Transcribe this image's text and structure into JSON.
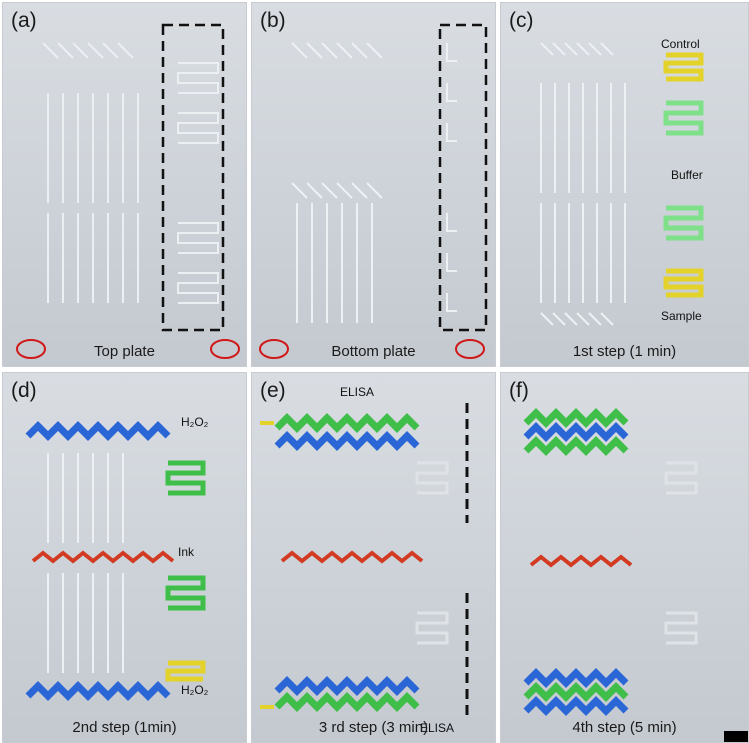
{
  "panels": [
    {
      "id": "a",
      "label": "(a)",
      "caption": "Top plate"
    },
    {
      "id": "b",
      "label": "(b)",
      "caption": "Bottom plate"
    },
    {
      "id": "c",
      "label": "(c)",
      "caption": "1st step (1 min)",
      "annotations": {
        "control": "Control",
        "buffer": "Buffer",
        "sample": "Sample"
      }
    },
    {
      "id": "d",
      "label": "(d)",
      "caption": "2nd step (1min)",
      "annotations": {
        "h2o2_top": "H₂O₂",
        "ink": "Ink",
        "h2o2_bottom": "H₂O₂"
      }
    },
    {
      "id": "e",
      "label": "(e)",
      "caption": "3 rd step (3 min)",
      "annotations": {
        "elisa_top": "ELISA",
        "elisa_bottom": "ELISA"
      }
    },
    {
      "id": "f",
      "label": "(f)",
      "caption": "4th step (5 min)"
    }
  ],
  "colors": {
    "blue": "#2a66d6",
    "green": "#3fbf4a",
    "yellow": "#e2d22a",
    "red": "#d23a22",
    "lightgreen": "#7fe08a"
  }
}
